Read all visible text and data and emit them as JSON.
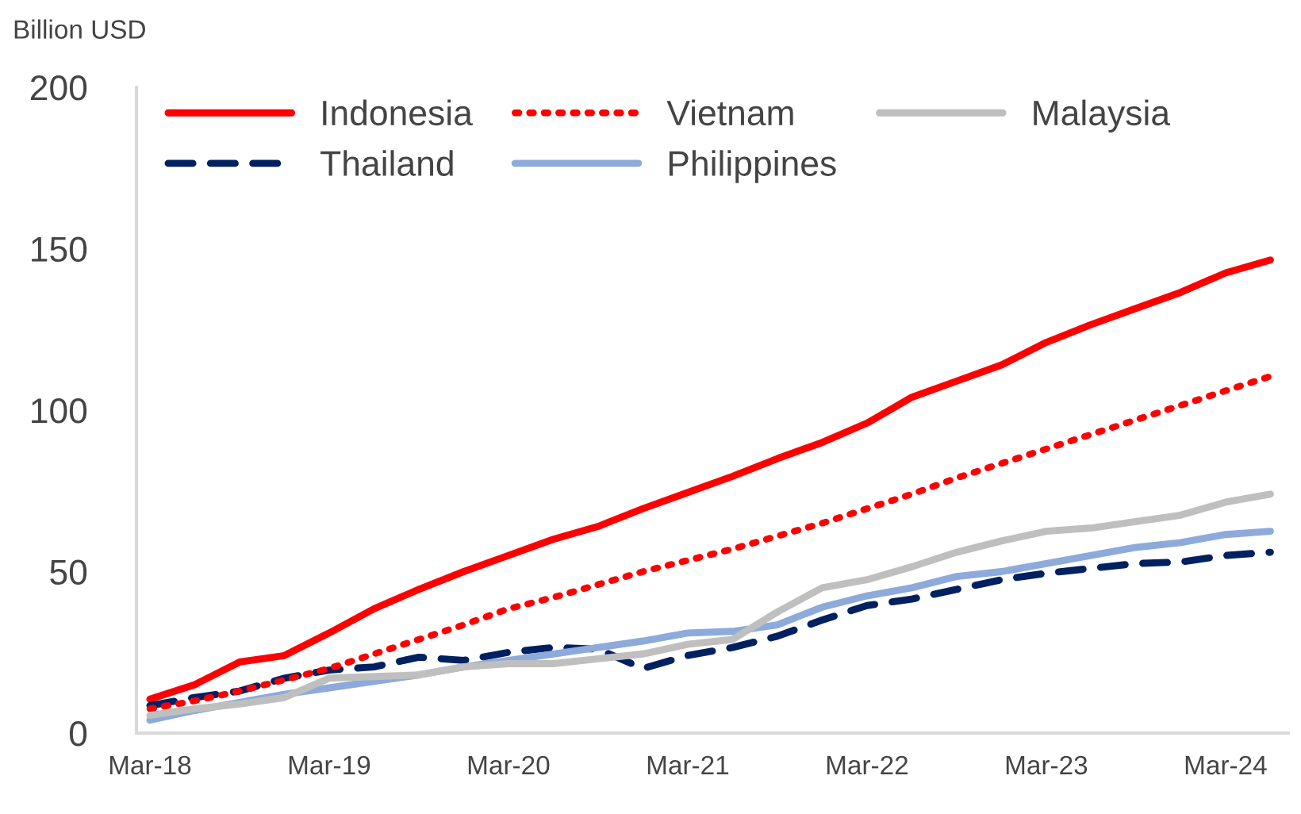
{
  "chart_data": {
    "type": "line",
    "ylabel": "Billion USD",
    "categories": [
      "Mar-18",
      null,
      null,
      null,
      "Mar-19",
      null,
      null,
      null,
      "Mar-20",
      null,
      null,
      null,
      "Mar-21",
      null,
      null,
      null,
      "Mar-22",
      null,
      null,
      null,
      "Mar-23",
      null,
      null,
      null,
      "Mar-24",
      null
    ],
    "series": [
      {
        "name": "Indonesia",
        "color": "#ff0000",
        "line_style": "solid",
        "values": [
          10.5,
          15,
          22,
          24,
          31,
          38.5,
          44.5,
          50,
          55,
          60,
          64,
          69.5,
          74.5,
          79.5,
          85,
          90,
          96,
          104,
          109,
          114,
          121,
          126.5,
          131.5,
          136.5,
          142.5,
          146.5
        ]
      },
      {
        "name": "Thailand",
        "color": "#002060",
        "line_style": "dashed",
        "values": [
          8.5,
          11,
          13,
          17,
          19.5,
          20.5,
          23.5,
          22.5,
          25,
          26.5,
          26,
          20,
          24,
          26.5,
          30,
          35,
          39.5,
          41.5,
          44.5,
          47.5,
          49.5,
          51,
          52.5,
          53,
          55,
          56
        ]
      },
      {
        "name": "Vietnam",
        "color": "#ff0000",
        "line_style": "dotted",
        "values": [
          7.5,
          10,
          13,
          16.5,
          20,
          24.5,
          29,
          33.5,
          38.5,
          42,
          46,
          50,
          53.5,
          57,
          61,
          65,
          69.5,
          74,
          79,
          83.5,
          88,
          92.5,
          97,
          101.5,
          106,
          110.5
        ]
      },
      {
        "name": "Philippines",
        "color": "#8eaadb",
        "line_style": "solid",
        "values": [
          4,
          7,
          9.5,
          12,
          14,
          16,
          18,
          20.5,
          22.5,
          24.5,
          26.5,
          28.5,
          31,
          31.5,
          33.5,
          39,
          42.5,
          45,
          48.5,
          50,
          52.5,
          55,
          57.5,
          59,
          61.5,
          62.5
        ]
      },
      {
        "name": "Malaysia",
        "color": "#bfbfbf",
        "line_style": "solid",
        "values": [
          5.5,
          7.5,
          9,
          11,
          17,
          17.5,
          18,
          20.5,
          21.5,
          21.5,
          23,
          24.5,
          27.5,
          29,
          37.5,
          45,
          47.5,
          51.5,
          56,
          59.5,
          62.5,
          63.5,
          65.5,
          67.5,
          71.5,
          74
        ]
      }
    ],
    "ylim": [
      0,
      200
    ],
    "yticks": [
      0,
      50,
      100,
      150,
      200
    ],
    "grid": false,
    "legend": "top left"
  }
}
